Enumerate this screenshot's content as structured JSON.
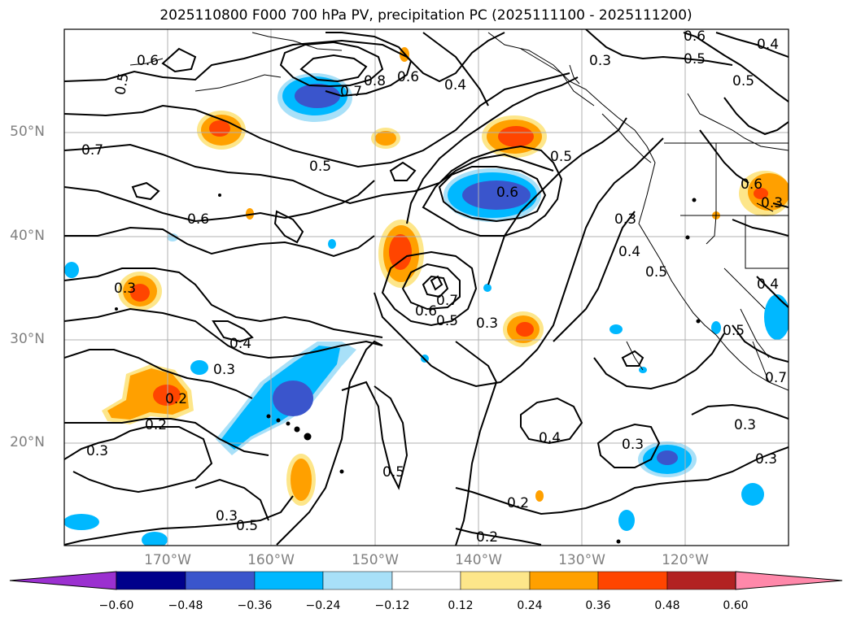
{
  "title": "2025110800 F000 700 hPa PV, precipitation PC (2025111100 - 2025111200)",
  "lat_labels": [
    "50°N",
    "40°N",
    "30°N",
    "20°N"
  ],
  "lon_labels": [
    "170°W",
    "160°W",
    "150°W",
    "140°W",
    "130°W",
    "120°W"
  ],
  "colorbar": {
    "ticks": [
      "−0.60",
      "−0.48",
      "−0.36",
      "−0.24",
      "−0.12",
      "0.12",
      "0.24",
      "0.36",
      "0.48",
      "0.60"
    ],
    "colors": [
      "#9b30d0",
      "#00008b",
      "#3a55cc",
      "#00b8ff",
      "#a8e0f8",
      "#ffffff",
      "#fde68a",
      "#ffa000",
      "#ff4500",
      "#b22222",
      "#ff88aa"
    ]
  },
  "contour_labels": [
    "0.6",
    "0.5",
    "0.7",
    "0.8",
    "0.6",
    "0.4",
    "0.3",
    "0.6",
    "0.5",
    "0.5",
    "0.4",
    "0.7",
    "0.5",
    "0.6",
    "0.6",
    "0.5",
    "0.3",
    "0.4",
    "0.5",
    "0.4",
    "0.3",
    "0.7",
    "0.6",
    "0.5",
    "0.3",
    "0.4",
    "0.3",
    "0.2",
    "0.2",
    "0.3",
    "0.4",
    "0.3",
    "0.3",
    "0.5",
    "0.3",
    "0.2",
    "0.2",
    "0.3",
    "0.5",
    "0.5",
    "0.7",
    "0.6",
    "0.3"
  ],
  "precip_colors": {
    "neg_strong": "#3a55cc",
    "neg_mid": "#00b8ff",
    "neg_light": "#a8e0f8",
    "pos_light": "#fde68a",
    "pos_mid": "#ffa000",
    "pos_strong": "#ff4500"
  }
}
